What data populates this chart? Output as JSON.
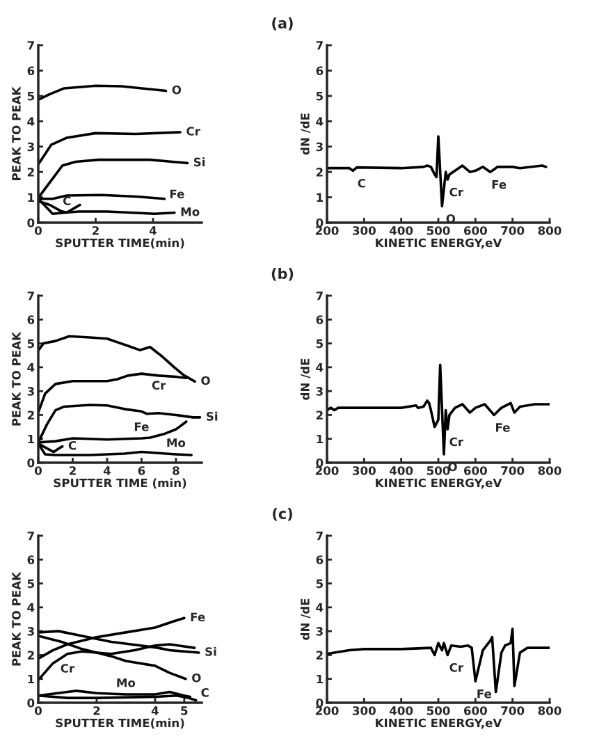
{
  "chart_data": [
    {
      "type": "line",
      "xlabel": "SPUTTER TIME(min)",
      "ylabel": "PEAK TO PEAK",
      "xlim": [
        0,
        5.7
      ],
      "xticks": [
        0,
        2,
        4
      ],
      "ylim": [
        0,
        7
      ],
      "yticks": [
        0,
        1,
        2,
        3,
        4,
        5,
        6,
        7
      ],
      "grid": false,
      "legend": false,
      "series": [
        {
          "name": "O",
          "color": "#000000",
          "x": [
            0,
            0.4,
            0.9,
            2,
            2.9,
            4.45
          ],
          "values": [
            4.85,
            5.07,
            5.3,
            5.4,
            5.38,
            5.2
          ]
        },
        {
          "name": "Cr",
          "color": "#000000",
          "x": [
            0,
            0.45,
            1,
            2,
            3.4,
            4.95
          ],
          "values": [
            2.3,
            3.07,
            3.35,
            3.53,
            3.5,
            3.57
          ]
        },
        {
          "name": "Si",
          "color": "#000000",
          "x": [
            0,
            0.84,
            1.3,
            2.1,
            3.9,
            5.2
          ],
          "values": [
            0.98,
            2.25,
            2.4,
            2.48,
            2.48,
            2.35
          ]
        },
        {
          "name": "Fe",
          "color": "#000000",
          "x": [
            0,
            0.5,
            1,
            2.2,
            3.4,
            4.4
          ],
          "values": [
            0.94,
            0.94,
            1.07,
            1.09,
            1.03,
            0.94
          ]
        },
        {
          "name": "C",
          "color": "#000000",
          "x": [
            0,
            0.4,
            0.8,
            1.0,
            1.3,
            1.45
          ],
          "values": [
            0.85,
            0.7,
            0.45,
            0.4,
            0.6,
            0.7
          ]
        },
        {
          "name": "Mo",
          "color": "#000000",
          "x": [
            0,
            0.5,
            1.4,
            2.4,
            4.05,
            4.75
          ],
          "values": [
            0.94,
            0.35,
            0.44,
            0.44,
            0.35,
            0.39
          ]
        }
      ]
    },
    {
      "type": "line",
      "title": "(a)",
      "xlabel": "KINETIC ENERGY,eV",
      "ylabel": "dN /dE",
      "xlim": [
        200,
        800
      ],
      "xticks": [
        200,
        300,
        400,
        500,
        600,
        700,
        800
      ],
      "ylim": [
        0,
        7
      ],
      "yticks": [
        0,
        1,
        2,
        3,
        4,
        5,
        6,
        7
      ],
      "grid": false,
      "legend": false,
      "series": [
        {
          "color": "#000000",
          "x": [
            200,
            260,
            270,
            280,
            400,
            460,
            470,
            480,
            490,
            495,
            500,
            510,
            520,
            525,
            530,
            550,
            565,
            585,
            600,
            620,
            640,
            660,
            700,
            720,
            780,
            790
          ],
          "values": [
            2.15,
            2.15,
            2.05,
            2.18,
            2.15,
            2.2,
            2.25,
            2.2,
            1.9,
            1.8,
            3.4,
            0.65,
            2.0,
            1.7,
            1.9,
            2.1,
            2.25,
            2.0,
            2.05,
            2.2,
            2.0,
            2.2,
            2.2,
            2.15,
            2.25,
            2.2
          ]
        }
      ],
      "annotations": [
        {
          "text": "C",
          "x": 270,
          "y": 2.05
        },
        {
          "text": "Cr",
          "x": 525,
          "y": 1.7
        },
        {
          "text": "Fe",
          "x": 640,
          "y": 2.0
        },
        {
          "text": "O",
          "x": 510,
          "y": 0.65
        }
      ]
    },
    {
      "type": "line",
      "xlabel": "SPUTTER TIME (min)",
      "ylabel": "PEAK TO PEAK",
      "xlim": [
        0,
        9.5
      ],
      "xticks": [
        0,
        2,
        4,
        6,
        8
      ],
      "ylim": [
        0,
        7
      ],
      "yticks": [
        0,
        1,
        2,
        3,
        4,
        5,
        6,
        7
      ],
      "grid": false,
      "legend": false,
      "series": [
        {
          "name": "O",
          "color": "#000000",
          "x": [
            0,
            0.3,
            1,
            1.8,
            3,
            4,
            4.6,
            5.2,
            5.9,
            6.5,
            7.2,
            7.9,
            8.45,
            9.1
          ],
          "values": [
            4.7,
            5.0,
            5.1,
            5.3,
            5.25,
            5.2,
            5.05,
            4.9,
            4.72,
            4.85,
            4.45,
            4.0,
            3.67,
            3.4
          ]
        },
        {
          "name": "Cr",
          "color": "#000000",
          "x": [
            0,
            0.4,
            1,
            2,
            4,
            4.6,
            5.2,
            6,
            7,
            8,
            8.6
          ],
          "values": [
            2.1,
            2.9,
            3.3,
            3.42,
            3.42,
            3.5,
            3.65,
            3.73,
            3.65,
            3.6,
            3.55
          ]
        },
        {
          "name": "Si",
          "color": "#000000",
          "x": [
            0,
            0.5,
            1,
            1.5,
            3,
            4,
            5,
            6,
            6.3,
            7,
            8,
            9,
            9.4
          ],
          "values": [
            0.85,
            1.6,
            2.2,
            2.35,
            2.42,
            2.4,
            2.25,
            2.15,
            2.05,
            2.08,
            2.0,
            1.9,
            1.9
          ]
        },
        {
          "name": "Fe",
          "color": "#000000",
          "x": [
            0,
            1,
            2,
            3,
            4,
            5,
            6,
            6.5,
            7.3,
            8,
            8.6
          ],
          "values": [
            0.85,
            0.9,
            1.02,
            1.0,
            0.97,
            1.0,
            1.02,
            1.05,
            1.2,
            1.4,
            1.72
          ]
        },
        {
          "name": "C",
          "color": "#000000",
          "x": [
            0,
            0.5,
            0.9,
            1.2,
            1.4
          ],
          "values": [
            0.8,
            0.6,
            0.45,
            0.6,
            0.68
          ]
        },
        {
          "name": "Mo",
          "color": "#000000",
          "x": [
            0,
            0.4,
            1,
            3,
            5,
            6,
            7,
            8,
            8.9
          ],
          "values": [
            0.8,
            0.35,
            0.32,
            0.32,
            0.38,
            0.45,
            0.4,
            0.35,
            0.32
          ]
        }
      ]
    },
    {
      "type": "line",
      "title": "(b)",
      "xlabel": "KINETIC ENERGY,eV",
      "ylabel": "dN /dE",
      "xlim": [
        200,
        800
      ],
      "xticks": [
        200,
        300,
        400,
        500,
        600,
        700,
        800
      ],
      "ylim": [
        0,
        7
      ],
      "yticks": [
        0,
        1,
        2,
        3,
        4,
        5,
        6,
        7
      ],
      "grid": false,
      "legend": false,
      "series": [
        {
          "color": "#000000",
          "x": [
            200,
            210,
            220,
            230,
            300,
            400,
            440,
            445,
            460,
            470,
            475,
            480,
            490,
            500,
            505,
            515,
            520,
            525,
            530,
            545,
            565,
            585,
            600,
            625,
            650,
            670,
            695,
            705,
            720,
            760,
            800
          ],
          "values": [
            2.2,
            2.3,
            2.2,
            2.3,
            2.3,
            2.3,
            2.4,
            2.3,
            2.35,
            2.6,
            2.5,
            2.2,
            1.5,
            1.8,
            4.1,
            0.35,
            2.2,
            1.4,
            2.0,
            2.3,
            2.45,
            2.1,
            2.3,
            2.45,
            2.0,
            2.3,
            2.5,
            2.1,
            2.35,
            2.45,
            2.45
          ]
        }
      ],
      "annotations": [
        {
          "text": "Cr",
          "x": 525,
          "y": 1.4
        },
        {
          "text": "Fe",
          "x": 650,
          "y": 2.0
        },
        {
          "text": "O",
          "x": 515,
          "y": 0.35
        }
      ]
    },
    {
      "type": "line",
      "xlabel": "SPUTTER TIME(min)",
      "ylabel": "PEAK TO PEAK",
      "xlim": [
        0,
        5.6
      ],
      "xticks": [
        0,
        2,
        4,
        5
      ],
      "ylim": [
        0,
        7
      ],
      "yticks": [
        0,
        1,
        2,
        3,
        4,
        5,
        6,
        7
      ],
      "grid": false,
      "legend": false,
      "series": [
        {
          "name": "Fe",
          "color": "#000000",
          "x": [
            0,
            0.5,
            1,
            2,
            3,
            4,
            4.6,
            5
          ],
          "values": [
            1.85,
            2.2,
            2.45,
            2.75,
            2.95,
            3.15,
            3.4,
            3.55
          ]
        },
        {
          "name": "Cr",
          "color": "#000000",
          "x": [
            0,
            0.5,
            1,
            1.5,
            2.5,
            3.3,
            4,
            4.5,
            5.35
          ],
          "values": [
            0.95,
            1.65,
            2.05,
            2.15,
            2.05,
            2.2,
            2.4,
            2.45,
            2.3
          ]
        },
        {
          "name": "Si",
          "color": "#000000",
          "x": [
            0,
            0.7,
            1.5,
            2.5,
            3.5,
            4.1,
            4.5,
            5,
            5.5
          ],
          "values": [
            2.95,
            3.0,
            2.8,
            2.55,
            2.4,
            2.3,
            2.2,
            2.15,
            2.1
          ]
        },
        {
          "name": "O",
          "color": "#000000",
          "x": [
            0,
            0.8,
            1.5,
            2.5,
            3,
            4,
            4.5,
            5.05
          ],
          "values": [
            2.8,
            2.55,
            2.25,
            1.95,
            1.75,
            1.55,
            1.25,
            1.0
          ]
        },
        {
          "name": "Mo",
          "color": "#000000",
          "x": [
            0,
            1,
            1.3,
            2,
            3,
            4,
            4.5,
            5,
            5.2
          ],
          "values": [
            0.3,
            0.45,
            0.5,
            0.4,
            0.35,
            0.35,
            0.45,
            0.3,
            0.25
          ]
        },
        {
          "name": "C",
          "color": "#000000",
          "x": [
            0,
            1,
            2,
            4,
            4.75,
            5.15,
            5.4
          ],
          "values": [
            0.3,
            0.2,
            0.2,
            0.25,
            0.3,
            0.2,
            0.1
          ]
        }
      ]
    },
    {
      "type": "line",
      "title": "(c)",
      "xlabel": "KINETIC ENERGY,eV",
      "ylabel": "dN /dE",
      "xlim": [
        200,
        800
      ],
      "xticks": [
        200,
        300,
        400,
        500,
        600,
        700,
        800
      ],
      "ylim": [
        0,
        7
      ],
      "yticks": [
        0,
        1,
        2,
        3,
        4,
        5,
        6,
        7
      ],
      "grid": false,
      "legend": false,
      "series": [
        {
          "color": "#000000",
          "x": [
            200,
            220,
            260,
            300,
            400,
            480,
            490,
            500,
            510,
            515,
            525,
            535,
            560,
            580,
            590,
            600,
            620,
            640,
            645,
            655,
            670,
            680,
            695,
            700,
            705,
            720,
            740,
            800
          ],
          "values": [
            2.05,
            2.1,
            2.2,
            2.25,
            2.25,
            2.3,
            2.0,
            2.5,
            2.2,
            2.5,
            2.0,
            2.4,
            2.35,
            2.4,
            2.3,
            0.9,
            2.2,
            2.6,
            2.75,
            0.45,
            2.1,
            2.4,
            2.5,
            3.1,
            0.7,
            2.1,
            2.3,
            2.3
          ]
        }
      ],
      "annotations": [
        {
          "text": "Cr",
          "x": 525,
          "y": 2.0
        },
        {
          "text": "Fe",
          "x": 600,
          "y": 0.9
        }
      ]
    }
  ]
}
